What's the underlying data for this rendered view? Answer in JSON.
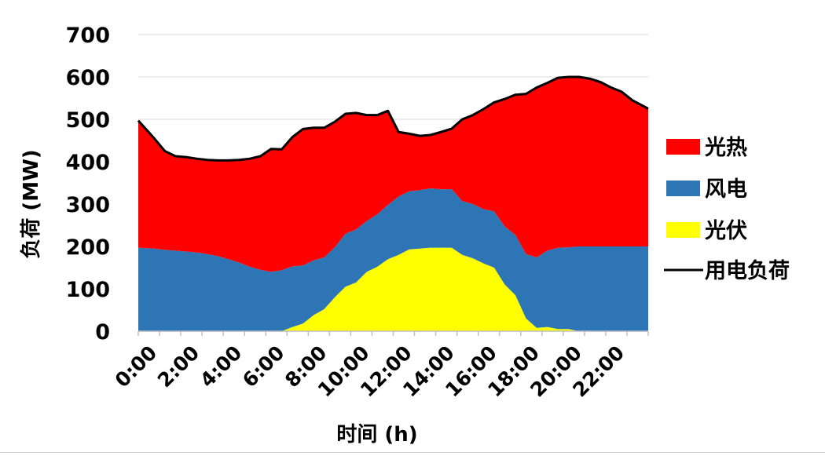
{
  "chart_data": {
    "type": "area",
    "xlabel": "时间 (h)",
    "ylabel": "负荷 (MW)",
    "ylim": [
      0,
      700
    ],
    "yticks": [
      0,
      100,
      200,
      300,
      400,
      500,
      600,
      700
    ],
    "xlim": [
      0,
      24
    ],
    "xticks": [
      {
        "value": 0,
        "label": "0:00"
      },
      {
        "value": 2,
        "label": "2:00"
      },
      {
        "value": 4,
        "label": "4:00"
      },
      {
        "value": 6,
        "label": "6:00"
      },
      {
        "value": 8,
        "label": "8:00"
      },
      {
        "value": 10,
        "label": "10:00"
      },
      {
        "value": 12,
        "label": "12:00"
      },
      {
        "value": 14,
        "label": "14:00"
      },
      {
        "value": 16,
        "label": "16:00"
      },
      {
        "value": 18,
        "label": "18:00"
      },
      {
        "value": 20,
        "label": "20:00"
      },
      {
        "value": 22,
        "label": "22:00"
      }
    ],
    "grid": "horizontal",
    "legend_position": "right",
    "x": [
      0.25,
      0.75,
      1.25,
      1.75,
      2.25,
      2.75,
      3.25,
      3.75,
      4.25,
      4.75,
      5.25,
      5.75,
      6.25,
      6.75,
      7.25,
      7.75,
      8.25,
      8.75,
      9.25,
      9.75,
      10.25,
      10.75,
      11.25,
      11.75,
      12.25,
      12.75,
      13.25,
      13.75,
      14.25,
      14.75,
      15.25,
      15.75,
      16.25,
      16.75,
      17.25,
      17.75,
      18.25,
      18.75,
      19.25,
      19.75,
      20.25,
      20.75,
      21.25,
      21.75,
      22.25,
      22.75,
      23.25,
      23.75
    ],
    "stack_order": [
      "光伏",
      "风电",
      "光热"
    ],
    "series": [
      {
        "name": "光伏",
        "color": "#ffff00",
        "values": [
          0,
          0,
          0,
          0,
          0,
          0,
          0,
          0,
          0,
          0,
          0,
          0,
          0,
          0,
          10,
          18,
          38,
          52,
          80,
          105,
          115,
          140,
          152,
          170,
          180,
          193,
          195,
          197,
          197,
          197,
          180,
          172,
          160,
          150,
          110,
          85,
          30,
          8,
          10,
          5,
          5,
          0,
          0,
          0,
          0,
          0,
          0,
          0
        ]
      },
      {
        "name": "风电",
        "color": "#2e75b6",
        "values": [
          197,
          195,
          192,
          190,
          188,
          186,
          182,
          177,
          170,
          162,
          152,
          145,
          140,
          144,
          143,
          137,
          129,
          122,
          118,
          125,
          125,
          120,
          124,
          128,
          138,
          137,
          138,
          140,
          138,
          138,
          127,
          128,
          128,
          133,
          137,
          142,
          152,
          166,
          180,
          192,
          193,
          200,
          200,
          200,
          200,
          200,
          200,
          200
        ]
      },
      {
        "name": "光热",
        "color": "#ff0000",
        "values": [
          300,
          260,
          233,
          223,
          223,
          221,
          222,
          226,
          233,
          242,
          255,
          268,
          290,
          285,
          305,
          322,
          313,
          306,
          296,
          283,
          275,
          250,
          234,
          222,
          152,
          136,
          128,
          126,
          135,
          143,
          193,
          210,
          236,
          257,
          301,
          331,
          378,
          401,
          396,
          401,
          402,
          400,
          396,
          388,
          375,
          365,
          345,
          325
        ]
      },
      {
        "name": "用电负荷",
        "color": "#000000",
        "style": "line",
        "values": [
          497,
          455,
          425,
          413,
          411,
          407,
          404,
          403,
          403,
          404,
          407,
          413,
          430,
          429,
          458,
          477,
          480,
          480,
          494,
          513,
          515,
          510,
          510,
          520,
          470,
          466,
          461,
          463,
          470,
          478,
          500,
          510,
          524,
          540,
          548,
          558,
          560,
          575,
          586,
          598,
          600,
          600,
          596,
          588,
          575,
          565,
          545,
          525
        ]
      }
    ]
  }
}
